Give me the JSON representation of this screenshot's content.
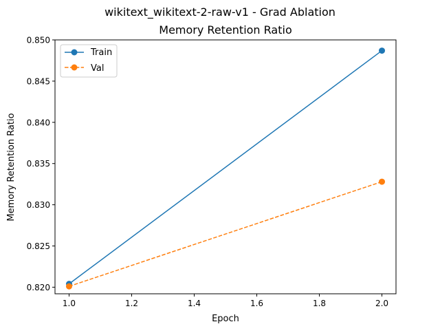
{
  "chart_data": {
    "type": "line",
    "suptitle": "wikitext_wikitext-2-raw-v1 - Grad Ablation",
    "title": "Memory Retention Ratio",
    "xlabel": "Epoch",
    "ylabel": "Memory Retention Ratio",
    "xlim": [
      0.955,
      2.045
    ],
    "ylim": [
      0.8192,
      0.85
    ],
    "xticks": [
      1.0,
      1.2,
      1.4,
      1.6,
      1.8,
      2.0
    ],
    "xtick_labels": [
      "1.0",
      "1.2",
      "1.4",
      "1.6",
      "1.8",
      "2.0"
    ],
    "yticks": [
      0.82,
      0.825,
      0.83,
      0.835,
      0.84,
      0.845,
      0.85
    ],
    "ytick_labels": [
      "0.820",
      "0.825",
      "0.830",
      "0.835",
      "0.840",
      "0.845",
      "0.850"
    ],
    "grid": false,
    "legend_position": "upper-left",
    "series": [
      {
        "name": "Train",
        "color": "#1f77b4",
        "line_style": "solid",
        "marker": "circle",
        "x": [
          1.0,
          2.0
        ],
        "y": [
          0.8204,
          0.8487
        ]
      },
      {
        "name": "Val",
        "color": "#ff7f0e",
        "line_style": "dashed",
        "marker": "circle",
        "x": [
          1.0,
          2.0
        ],
        "y": [
          0.8201,
          0.8328
        ]
      }
    ]
  }
}
